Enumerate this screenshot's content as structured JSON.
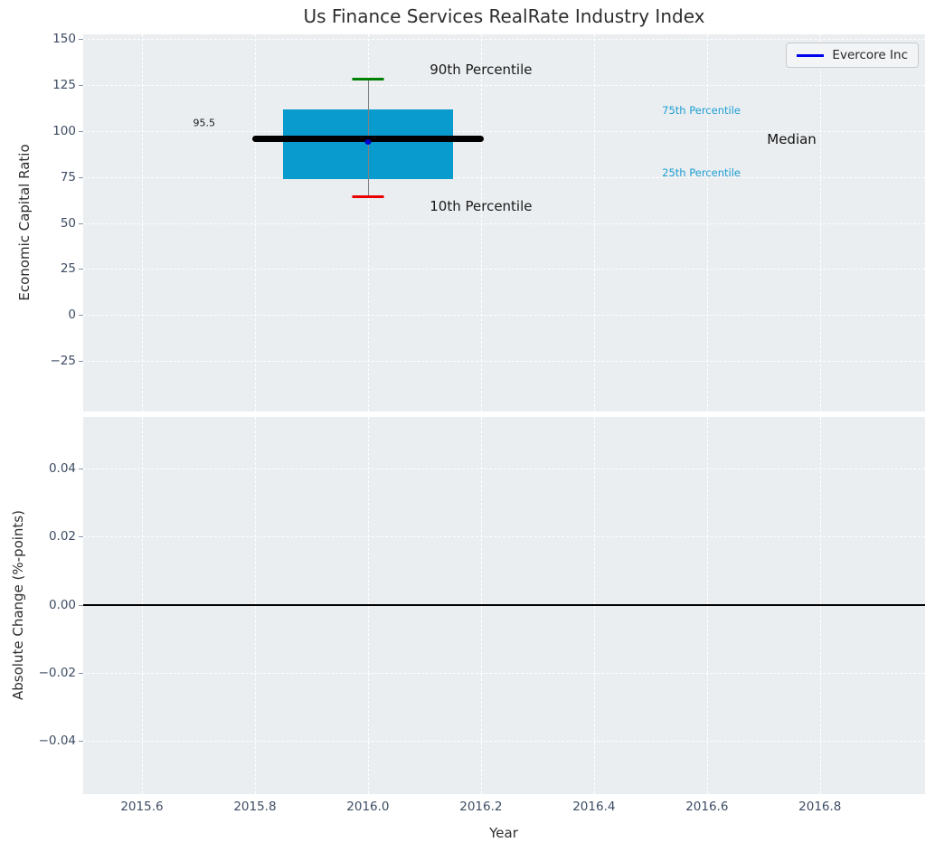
{
  "chart_data": {
    "type": "boxplot",
    "title": "Us Finance Services RealRate Industry Index",
    "xlabel": "Year",
    "xlim": [
      2015.496,
      2016.986
    ],
    "xticks": [
      2015.6,
      2015.8,
      2016.0,
      2016.2,
      2016.4,
      2016.6,
      2016.8
    ],
    "legend": {
      "label": "Evercore Inc",
      "position": "upper right"
    },
    "top_plot": {
      "ylabel": "Economic Capital Ratio",
      "ylim": [
        -52.3,
        152.3
      ],
      "yticks": [
        150,
        125,
        100,
        75,
        50,
        25,
        0,
        -25
      ],
      "grid": true,
      "box": {
        "x": 2016.0,
        "p10": 64,
        "p25": 74,
        "median": 95.5,
        "p75": 111.5,
        "p90": 128,
        "company_value": 94,
        "box_half_width": 0.151,
        "median_half_width": 0.205,
        "cap_half_width": 0.028
      },
      "annotations": [
        {
          "name": "median-value-label",
          "text": "95.5",
          "x": 2015.71,
          "y": 104,
          "color": "#1a1a1a",
          "size": 11
        },
        {
          "name": "90th-percentile-label",
          "text": "90th Percentile",
          "x": 2016.2,
          "y": 133,
          "color": "#1a1a1a",
          "size": 15
        },
        {
          "name": "10th-percentile-label",
          "text": "10th Percentile",
          "x": 2016.2,
          "y": 59,
          "color": "#1a1a1a",
          "size": 15
        },
        {
          "name": "75th-percentile-label",
          "text": "75th Percentile",
          "x": 2016.59,
          "y": 111,
          "color": "#1d9ed3",
          "size": 11.5
        },
        {
          "name": "25th-percentile-label",
          "text": "25th Percentile",
          "x": 2016.59,
          "y": 77,
          "color": "#1d9ed3",
          "size": 11.5
        },
        {
          "name": "median-label",
          "text": "Median",
          "x": 2016.75,
          "y": 95.5,
          "color": "#111111",
          "size": 15
        }
      ]
    },
    "bottom_plot": {
      "ylabel": "Absolute Change (%-points)",
      "ylim": [
        -0.0556,
        0.0552
      ],
      "yticks": [
        0.04,
        0.02,
        0,
        -0.02,
        -0.04
      ],
      "zero_line_y": 0,
      "grid": true
    },
    "colors": {
      "box_fill": "#0a9bce",
      "median_line": "#000000",
      "whisker": "#808080",
      "cap_90th": "#008000",
      "cap_10th": "#ea0000",
      "company_marker": "#0000c8",
      "legend_line": "#0000ee",
      "percentile_text": "#1d9ed3",
      "panel_bg": "#eaeef0",
      "grid_line": "#ffffff",
      "tick_label": "#3d4c63",
      "text": "#2e2e2e"
    }
  }
}
